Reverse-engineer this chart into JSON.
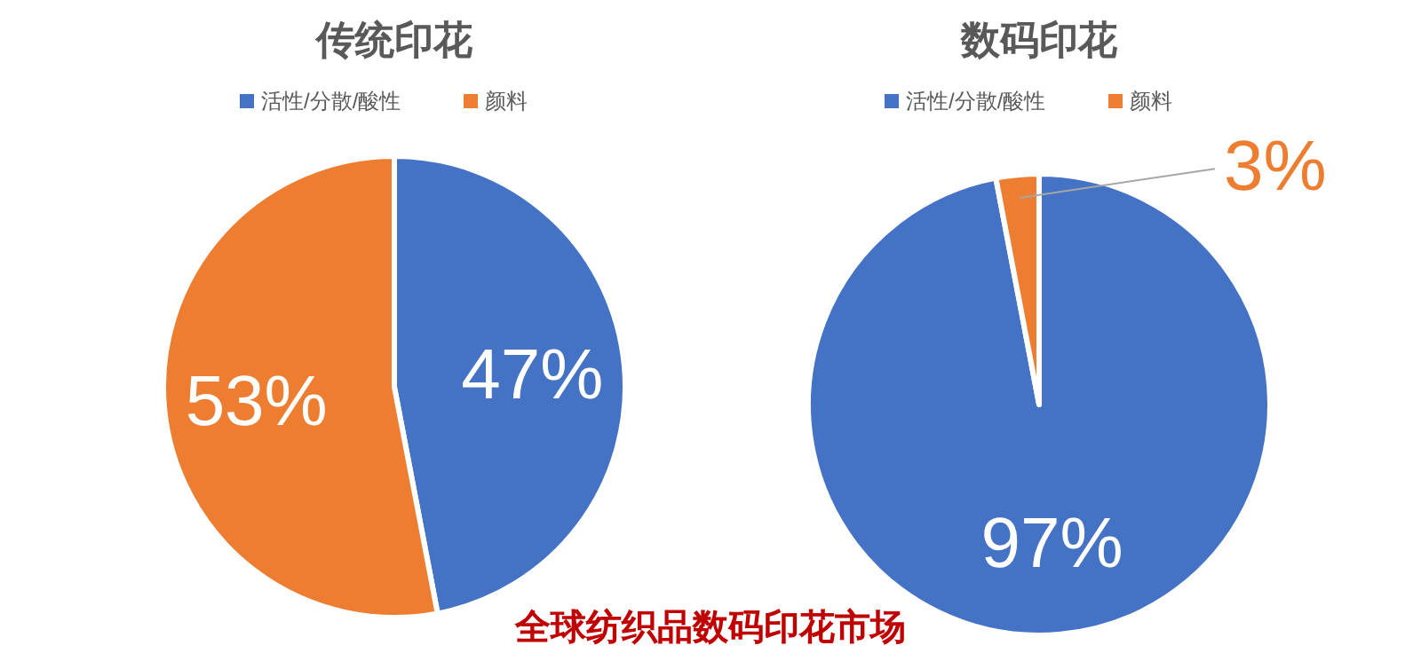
{
  "chart_data": [
    {
      "type": "pie",
      "title": "传统印花",
      "categories": [
        "活性/分散/酸性",
        "颜料"
      ],
      "values": [
        47,
        53
      ],
      "colors": [
        "#4472c4",
        "#ed7d31"
      ],
      "value_labels": [
        "47%",
        "53%"
      ],
      "legend": "top",
      "annotations": [
        "全球纺织品数码印花市场"
      ]
    },
    {
      "type": "pie",
      "title": "数码印花",
      "categories": [
        "活性/分散/酸性",
        "颜料"
      ],
      "values": [
        97,
        3
      ],
      "colors": [
        "#4472c4",
        "#ed7d31"
      ],
      "value_labels": [
        "97%",
        "3%"
      ],
      "legend": "top"
    }
  ]
}
